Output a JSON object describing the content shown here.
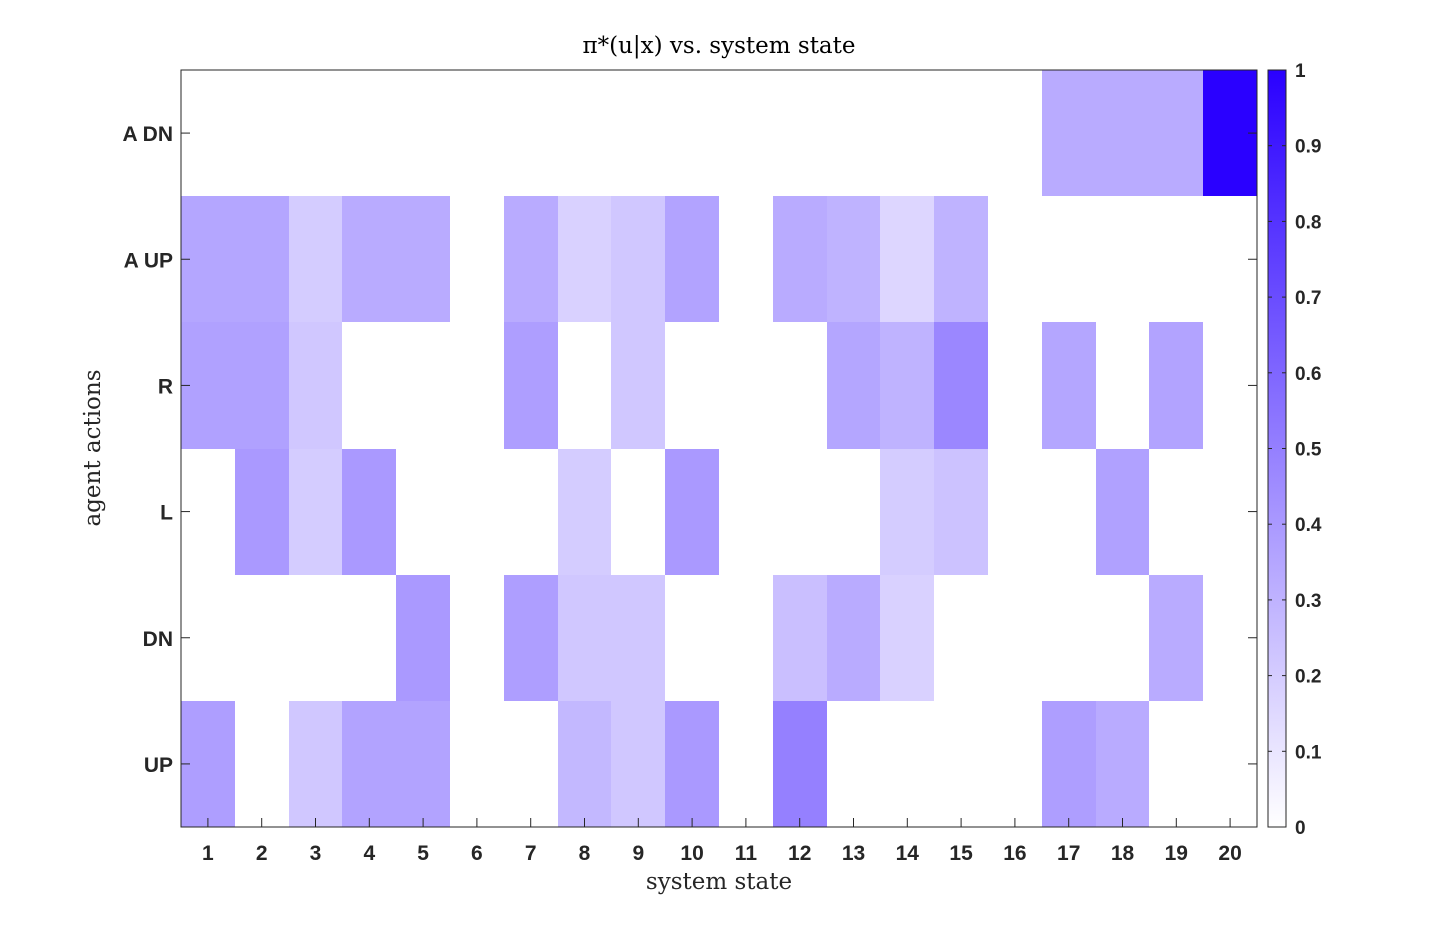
{
  "chart_data": {
    "type": "heatmap",
    "title": "π*(u|x) vs. system state",
    "xlabel": "system state",
    "ylabel": "agent actions",
    "x_categories": [
      "1",
      "2",
      "3",
      "4",
      "5",
      "6",
      "7",
      "8",
      "9",
      "10",
      "11",
      "12",
      "13",
      "14",
      "15",
      "16",
      "17",
      "18",
      "19",
      "20"
    ],
    "y_categories": [
      "A DN",
      "A UP",
      "R",
      "L",
      "DN",
      "UP"
    ],
    "values": [
      [
        0,
        0,
        0,
        0,
        0,
        0,
        0,
        0,
        0,
        0,
        0,
        0,
        0,
        0,
        0,
        0,
        0.33,
        0.33,
        0.33,
        1.0
      ],
      [
        0.35,
        0.35,
        0.2,
        0.33,
        0.33,
        0,
        0.33,
        0.18,
        0.22,
        0.36,
        0,
        0.33,
        0.3,
        0.16,
        0.3,
        0,
        0,
        0,
        0,
        0
      ],
      [
        0.37,
        0.37,
        0.22,
        0,
        0,
        0,
        0.38,
        0,
        0.22,
        0,
        0,
        0,
        0.35,
        0.3,
        0.47,
        0,
        0.35,
        0,
        0.36,
        0
      ],
      [
        0,
        0.4,
        0.2,
        0.4,
        0,
        0,
        0,
        0.2,
        0,
        0.4,
        0,
        0,
        0,
        0.2,
        0.24,
        0,
        0,
        0.37,
        0,
        0
      ],
      [
        0,
        0,
        0,
        0,
        0.4,
        0,
        0.38,
        0.22,
        0.22,
        0,
        0,
        0.25,
        0.33,
        0.18,
        0,
        0,
        0,
        0,
        0.33,
        0
      ],
      [
        0.38,
        0,
        0.22,
        0.36,
        0.36,
        0,
        0,
        0.28,
        0.22,
        0.4,
        0,
        0.5,
        0,
        0,
        0,
        0,
        0.38,
        0.33,
        0,
        0
      ]
    ],
    "color_scale": {
      "min": 0,
      "max": 1,
      "low_color": "#ffffff",
      "high_color": "#2a00ff",
      "ticks": [
        "0",
        "0.1",
        "0.2",
        "0.3",
        "0.4",
        "0.5",
        "0.6",
        "0.7",
        "0.8",
        "0.9",
        "1"
      ]
    },
    "grid": false
  }
}
